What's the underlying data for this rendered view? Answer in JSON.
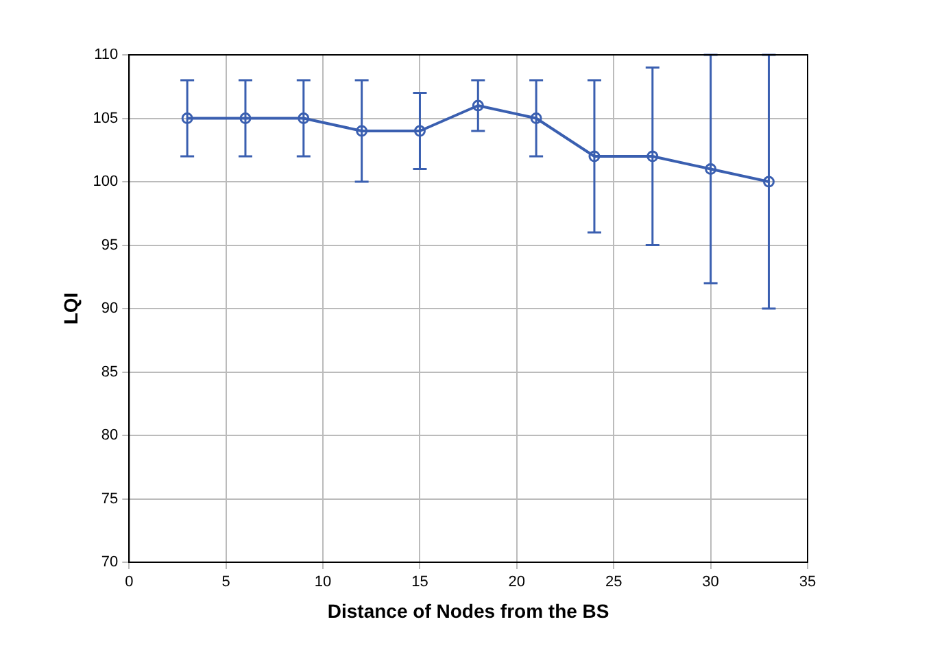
{
  "chart_data": {
    "type": "line",
    "xlabel": "Distance of Nodes from the BS",
    "ylabel": "LQI",
    "x": [
      3,
      6,
      9,
      12,
      15,
      18,
      21,
      24,
      27,
      30,
      33
    ],
    "series": [
      {
        "color": "#3a5fb0",
        "values": [
          105,
          105,
          105,
          104,
          104,
          106,
          105,
          102,
          102,
          101,
          100
        ],
        "errors": [
          [
            102,
            108
          ],
          [
            102,
            108
          ],
          [
            102,
            108
          ],
          [
            100,
            108
          ],
          [
            101,
            107
          ],
          [
            104,
            108
          ],
          [
            102,
            108
          ],
          [
            96,
            108
          ],
          [
            95,
            109
          ],
          [
            92,
            110
          ],
          [
            90,
            110
          ]
        ]
      }
    ],
    "xlim": [
      0,
      35
    ],
    "xticks": [
      0,
      5,
      10,
      15,
      20,
      25,
      30,
      35
    ],
    "ylim": [
      70,
      110
    ],
    "yticks": [
      70,
      75,
      80,
      85,
      90,
      95,
      100,
      105,
      110
    ],
    "grid": true,
    "marker": "circle",
    "line_style": "solid",
    "legend": false
  }
}
